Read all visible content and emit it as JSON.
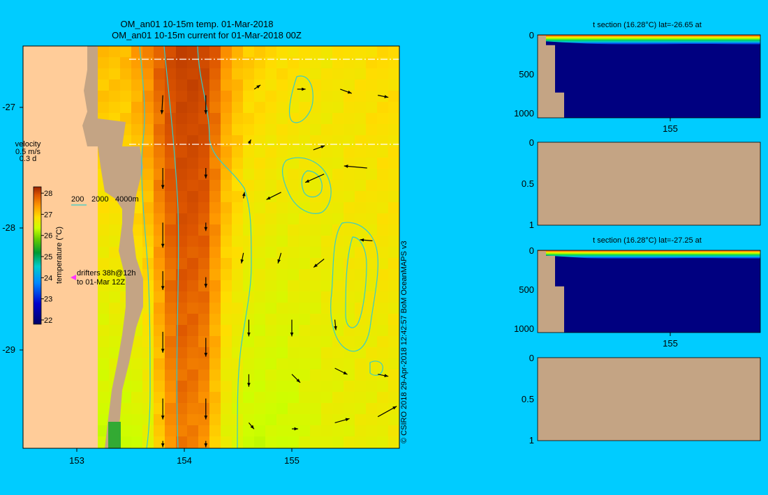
{
  "map": {
    "title_line1": "OM_an01 10-15m temp. 01-Mar-2018",
    "title_line2": "OM_an01 10-15m current for 01-Mar-2018 00Z",
    "velocity_label": "velocity",
    "velocity_speed": "0.5 m/s",
    "velocity_time": "0.3 d",
    "contour_legend": {
      "c1": "200",
      "c2": "2000",
      "c3": "4000m"
    },
    "drifters_line1": "drifters 38h@12h",
    "drifters_line2": "to 01-Mar 12Z",
    "credit": "© CSIRO 2018   29-Apr-2018 12:42:57 BoM OceanMAPS v3",
    "colors": {
      "background": "#00ccff",
      "land": "#ffcc99",
      "coastline_land": "#c4a484",
      "contour": "#33cccc"
    },
    "icons": {
      "drifter": "magenta-arrowhead-icon",
      "current": "black-arrow-icon"
    }
  },
  "chart_data": [
    {
      "type": "heatmap",
      "title": "OM_an01 10-15m temp. 01-Mar-2018",
      "xlim": [
        152.5,
        156.0
      ],
      "ylim": [
        -29.8,
        -26.55
      ],
      "x_ticks": [
        153,
        154,
        155
      ],
      "x_tick_labels": [
        "153",
        "154",
        "155"
      ],
      "y_ticks": [
        -27,
        -28,
        -29
      ],
      "y_tick_labels": [
        "-27",
        "-28",
        "-29"
      ],
      "colorbar": {
        "label": "temperature (°C)",
        "ticks": [
          28,
          27,
          26,
          25,
          24,
          23,
          22
        ],
        "range": [
          21.8,
          28.3
        ]
      },
      "section_lats": [
        -26.65,
        -27.25
      ],
      "temperature_columns": {
        "lon": [
          153.45,
          153.65,
          153.85,
          154.0,
          154.2,
          154.4,
          154.6,
          154.9,
          155.3,
          155.9
        ],
        "north_c": [
          27.0,
          27.3,
          27.7,
          27.9,
          27.8,
          27.2,
          26.9,
          26.8,
          26.7,
          26.8
        ],
        "south_c": [
          26.3,
          26.4,
          27.2,
          27.4,
          27.2,
          26.5,
          26.3,
          26.3,
          26.5,
          26.6
        ]
      },
      "currents": [
        {
          "lon": 153.8,
          "lat": -26.9,
          "u": -0.05,
          "v": -0.9
        },
        {
          "lon": 154.2,
          "lat": -26.9,
          "u": 0.0,
          "v": -0.9
        },
        {
          "lon": 154.65,
          "lat": -26.85,
          "u": 0.3,
          "v": 0.2
        },
        {
          "lon": 155.05,
          "lat": -26.85,
          "u": 0.4,
          "v": 0.0
        },
        {
          "lon": 155.45,
          "lat": -26.85,
          "u": 0.55,
          "v": -0.2
        },
        {
          "lon": 155.8,
          "lat": -26.9,
          "u": 0.5,
          "v": -0.1
        },
        {
          "lon": 153.8,
          "lat": -27.5,
          "u": 0.0,
          "v": -1.0
        },
        {
          "lon": 154.2,
          "lat": -27.5,
          "u": 0.0,
          "v": -0.5
        },
        {
          "lon": 154.6,
          "lat": -27.3,
          "u": 0.1,
          "v": 0.2
        },
        {
          "lon": 155.2,
          "lat": -27.35,
          "u": 0.55,
          "v": 0.2
        },
        {
          "lon": 153.8,
          "lat": -27.95,
          "u": 0.0,
          "v": -1.2
        },
        {
          "lon": 154.2,
          "lat": -27.95,
          "u": 0.0,
          "v": -0.4
        },
        {
          "lon": 154.55,
          "lat": -27.75,
          "u": 0.05,
          "v": 0.3
        },
        {
          "lon": 154.9,
          "lat": -27.7,
          "u": -0.7,
          "v": -0.35
        },
        {
          "lon": 155.3,
          "lat": -27.55,
          "u": -0.9,
          "v": -0.4
        },
        {
          "lon": 155.7,
          "lat": -27.5,
          "u": -1.1,
          "v": 0.1
        },
        {
          "lon": 154.55,
          "lat": -28.2,
          "u": -0.1,
          "v": -0.5
        },
        {
          "lon": 154.9,
          "lat": -28.2,
          "u": -0.15,
          "v": -0.5
        },
        {
          "lon": 155.3,
          "lat": -28.25,
          "u": -0.5,
          "v": -0.4
        },
        {
          "lon": 155.75,
          "lat": -28.1,
          "u": -0.6,
          "v": 0.05
        },
        {
          "lon": 153.8,
          "lat": -28.35,
          "u": 0.0,
          "v": -0.9
        },
        {
          "lon": 154.2,
          "lat": -28.4,
          "u": 0.0,
          "v": -0.5
        },
        {
          "lon": 153.8,
          "lat": -28.85,
          "u": 0.0,
          "v": -1.0
        },
        {
          "lon": 154.2,
          "lat": -28.9,
          "u": 0.0,
          "v": -0.9
        },
        {
          "lon": 154.6,
          "lat": -28.75,
          "u": 0.0,
          "v": -0.8
        },
        {
          "lon": 155.0,
          "lat": -28.75,
          "u": 0.0,
          "v": -0.8
        },
        {
          "lon": 155.4,
          "lat": -28.75,
          "u": 0.05,
          "v": -0.5
        },
        {
          "lon": 153.8,
          "lat": -29.4,
          "u": 0.0,
          "v": -1.0
        },
        {
          "lon": 154.2,
          "lat": -29.4,
          "u": 0.0,
          "v": -1.0
        },
        {
          "lon": 154.6,
          "lat": -29.2,
          "u": 0.0,
          "v": -0.6
        },
        {
          "lon": 155.0,
          "lat": -29.2,
          "u": 0.4,
          "v": -0.4
        },
        {
          "lon": 155.4,
          "lat": -29.15,
          "u": 0.6,
          "v": -0.3
        },
        {
          "lon": 155.8,
          "lat": -29.2,
          "u": 0.5,
          "v": -0.1
        },
        {
          "lon": 154.6,
          "lat": -29.6,
          "u": 0.25,
          "v": -0.3
        },
        {
          "lon": 155.0,
          "lat": -29.65,
          "u": 0.3,
          "v": 0.0
        },
        {
          "lon": 155.4,
          "lat": -29.6,
          "u": 0.7,
          "v": 0.2
        },
        {
          "lon": 155.8,
          "lat": -29.55,
          "u": 0.9,
          "v": 0.5
        },
        {
          "lon": 153.8,
          "lat": -29.75,
          "u": 0.0,
          "v": -0.3
        },
        {
          "lon": 154.2,
          "lat": -29.75,
          "u": 0.0,
          "v": -0.3
        }
      ]
    },
    {
      "type": "heatmap",
      "title": "t section (16.28°C) lat=-26.65 at",
      "y_tick_labels": [
        "0",
        "500",
        "1000"
      ],
      "x_tick_labels": [
        "155"
      ],
      "ylim": [
        1050,
        0
      ],
      "thermocline_depth_m": [
        75,
        95,
        110,
        120,
        125,
        120,
        115,
        115,
        120,
        125
      ],
      "shelf_depth_m": [
        0,
        120,
        720,
        1050
      ]
    },
    {
      "type": "heatmap",
      "title": "",
      "y_tick_labels": [
        "0",
        "0.5",
        "1"
      ],
      "ylim": [
        1,
        0
      ],
      "state": "all land / empty"
    },
    {
      "type": "heatmap",
      "title": "t section (16.28°C) lat=-27.25 at",
      "y_tick_labels": [
        "0",
        "500",
        "1000"
      ],
      "x_tick_labels": [
        "155"
      ],
      "ylim": [
        1050,
        0
      ],
      "thermocline_depth_m": [
        60,
        80,
        100,
        110,
        110,
        105,
        100,
        100,
        105,
        110
      ],
      "shelf_depth_m": [
        0,
        60,
        450,
        1050
      ]
    },
    {
      "type": "heatmap",
      "title": "",
      "y_tick_labels": [
        "0",
        "0.5",
        "1"
      ],
      "ylim": [
        1,
        0
      ],
      "state": "all land / empty"
    }
  ]
}
